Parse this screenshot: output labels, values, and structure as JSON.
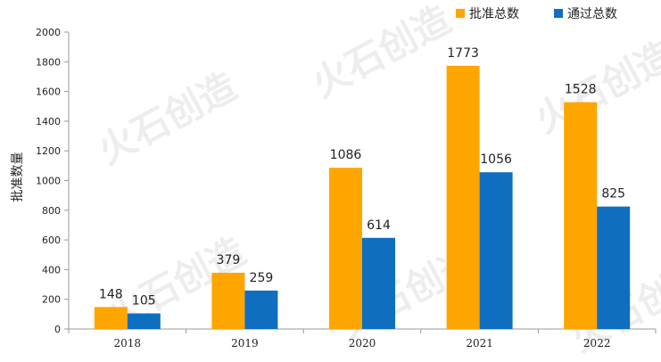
{
  "chart_data": {
    "type": "bar",
    "title": "",
    "xlabel": "",
    "ylabel": "批准数量",
    "categories": [
      "2018",
      "2019",
      "2020",
      "2021",
      "2022"
    ],
    "series": [
      {
        "name": "批准总数",
        "color": "#FFA500",
        "values": [
          148,
          379,
          1086,
          1773,
          1528
        ]
      },
      {
        "name": "通过总数",
        "color": "#0F6EC0",
        "values": [
          105,
          259,
          614,
          1056,
          825
        ]
      }
    ],
    "ylim": [
      0,
      2000
    ],
    "yticks": [
      0,
      200,
      400,
      600,
      800,
      1000,
      1200,
      1400,
      1600,
      1800,
      2000
    ],
    "grid": false,
    "legend_position": "top-right",
    "watermark": "火石创造"
  }
}
